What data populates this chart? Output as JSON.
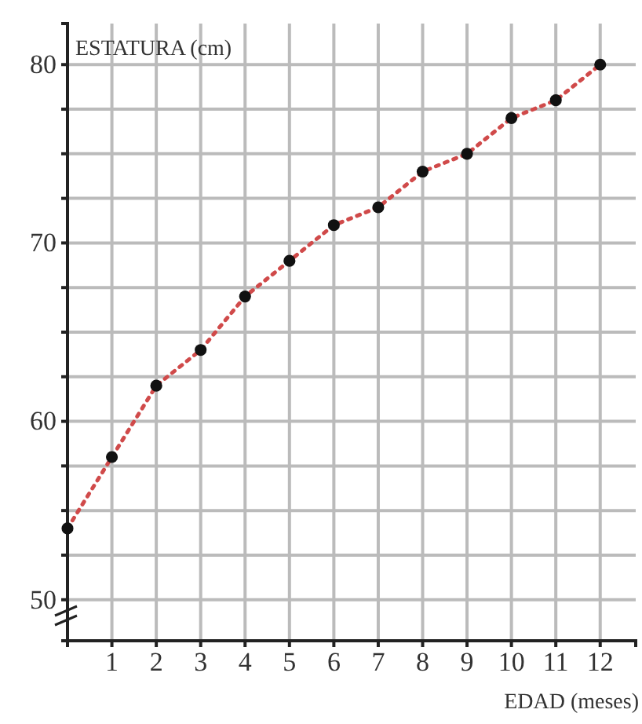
{
  "chart_data": {
    "type": "line",
    "xlabel": "EDAD (meses)",
    "ylabel": "ESTATURA (cm)",
    "x": [
      0,
      1,
      2,
      3,
      4,
      5,
      6,
      7,
      8,
      9,
      10,
      11,
      12
    ],
    "series": [
      {
        "color": "#d04a4a",
        "values": [
          54,
          58,
          62,
          64,
          67,
          69,
          71,
          72,
          74,
          75,
          77,
          78,
          80
        ]
      }
    ],
    "xlim": [
      0,
      12.8
    ],
    "xticks": [
      1,
      2,
      3,
      4,
      5,
      6,
      7,
      8,
      9,
      10,
      11,
      12
    ],
    "ylim": [
      47.7,
      82.3
    ],
    "yticks": [
      50,
      {
        "value": 52.5,
        "label": null
      },
      {
        "value": 55,
        "label": null
      },
      {
        "value": 57.5,
        "label": null
      },
      60,
      {
        "value": 62.5,
        "label": null
      },
      {
        "value": 65,
        "label": null
      },
      {
        "value": 67.5,
        "label": null
      },
      70,
      {
        "value": 72.5,
        "label": null
      },
      {
        "value": 75,
        "label": null
      },
      {
        "value": 77.5,
        "label": null
      },
      80
    ],
    "grid": true,
    "marker": "circle",
    "line_style": "dotted"
  }
}
